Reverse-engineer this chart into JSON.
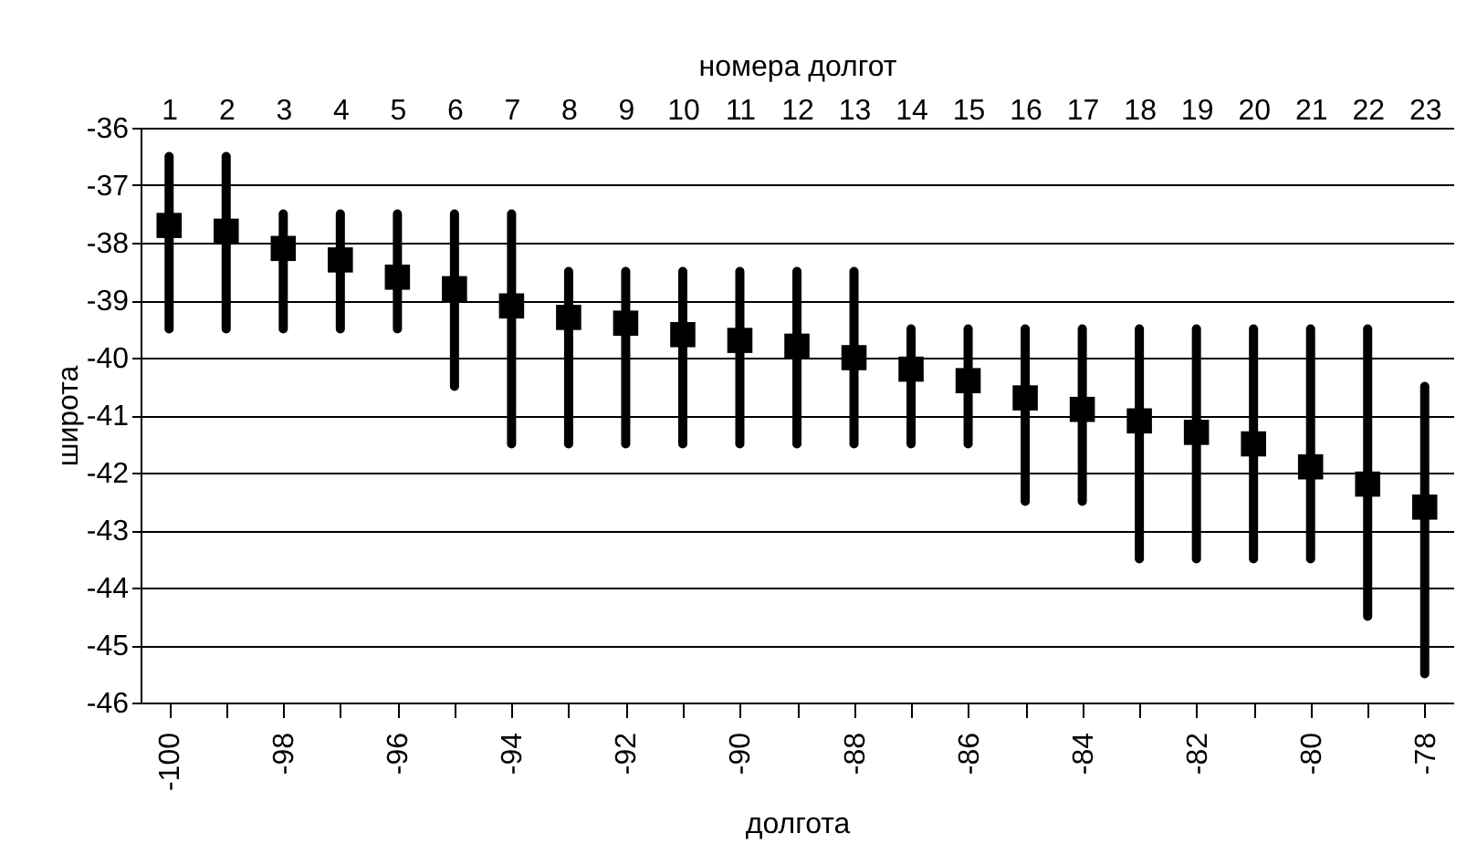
{
  "chart_data": {
    "type": "scatter",
    "xlabel": "долгота",
    "ylabel": "широта",
    "x2label": "номера долгот",
    "x": [
      -100,
      -99,
      -98,
      -97,
      -96,
      -95,
      -94,
      -93,
      -92,
      -91,
      -90,
      -89,
      -88,
      -87,
      -86,
      -85,
      -84,
      -83,
      -82,
      -81,
      -80,
      -79,
      -78
    ],
    "series": [
      {
        "color": "#000000",
        "values": [
          -37.7,
          -37.8,
          -38.1,
          -38.3,
          -38.6,
          -38.8,
          -39.1,
          -39.3,
          -39.4,
          -39.6,
          -39.7,
          -39.8,
          -40.0,
          -40.2,
          -40.4,
          -40.7,
          -40.9,
          -41.1,
          -41.3,
          -41.5,
          -41.9,
          -42.2,
          -42.6
        ],
        "errors": [
          [
            -39.5,
            -36.5
          ],
          [
            -39.5,
            -36.5
          ],
          [
            -39.5,
            -37.5
          ],
          [
            -39.5,
            -37.5
          ],
          [
            -39.5,
            -37.5
          ],
          [
            -40.5,
            -37.5
          ],
          [
            -41.5,
            -37.5
          ],
          [
            -41.5,
            -38.5
          ],
          [
            -41.5,
            -38.5
          ],
          [
            -41.5,
            -38.5
          ],
          [
            -41.5,
            -38.5
          ],
          [
            -41.5,
            -38.5
          ],
          [
            -41.5,
            -38.5
          ],
          [
            -41.5,
            -39.5
          ],
          [
            -41.5,
            -39.5
          ],
          [
            -42.5,
            -39.5
          ],
          [
            -42.5,
            -39.5
          ],
          [
            -43.5,
            -39.5
          ],
          [
            -43.5,
            -39.5
          ],
          [
            -43.5,
            -39.5
          ],
          [
            -43.5,
            -39.5
          ],
          [
            -44.5,
            -39.5
          ],
          [
            -45.5,
            -40.5
          ]
        ]
      }
    ],
    "xlim": [
      -100.5,
      -77.5
    ],
    "xticks": [
      -100,
      {
        "value": -99,
        "label": null
      },
      -98,
      {
        "value": -97,
        "label": null
      },
      -96,
      {
        "value": -95,
        "label": null
      },
      -94,
      {
        "value": -93,
        "label": null
      },
      -92,
      {
        "value": -91,
        "label": null
      },
      -90,
      {
        "value": -89,
        "label": null
      },
      -88,
      {
        "value": -87,
        "label": null
      },
      -86,
      {
        "value": -85,
        "label": null
      },
      -84,
      {
        "value": -83,
        "label": null
      },
      -82,
      {
        "value": -81,
        "label": null
      },
      -80,
      {
        "value": -79,
        "label": null
      },
      -78
    ],
    "x2lim": [
      0.5,
      23.5
    ],
    "x2ticks": [
      1,
      2,
      3,
      4,
      5,
      6,
      7,
      8,
      9,
      10,
      11,
      12,
      13,
      14,
      15,
      16,
      17,
      18,
      19,
      20,
      21,
      22,
      23
    ],
    "ylim": [
      -46,
      -36
    ],
    "yticks": [
      -46,
      -45,
      -44,
      -43,
      -42,
      -41,
      -40,
      -39,
      -38,
      -37,
      -36
    ],
    "grid": "y",
    "marker": "square"
  }
}
